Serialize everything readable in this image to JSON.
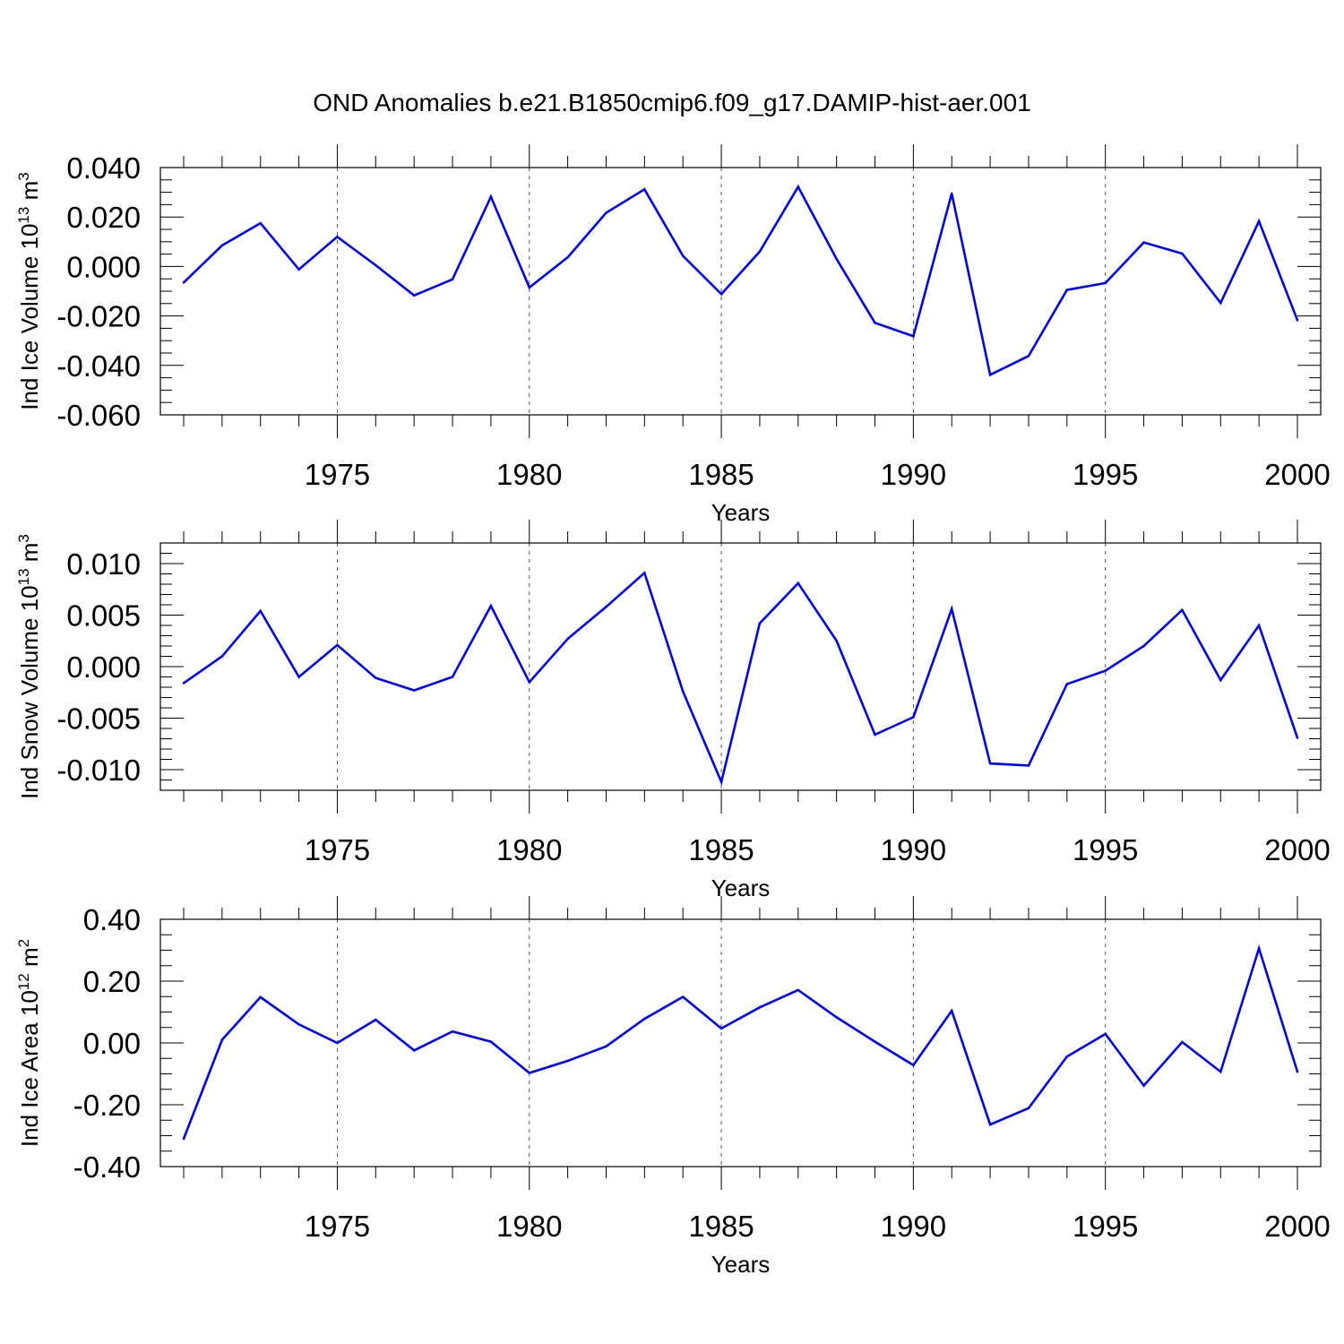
{
  "page_title": "OND Anomalies b.e21.B1850cmip6.f09_g17.DAMIP-hist-aer.001",
  "chart_data": [
    {
      "type": "line",
      "xlabel": "Years",
      "ylabel": {
        "prefix": "Ind Ice Volume 10",
        "sup1": "13",
        "mid": " m",
        "sup2": "3"
      },
      "xlim": [
        1971,
        2000
      ],
      "ylim": [
        -0.06,
        0.04
      ],
      "x_major_ticks": [
        1975,
        1980,
        1985,
        1990,
        1995,
        2000
      ],
      "x_tick_labels": [
        "1975",
        "1980",
        "1985",
        "1990",
        "1995",
        "2000"
      ],
      "y_major_ticks": [
        -0.06,
        -0.04,
        -0.02,
        0.0,
        0.02,
        0.04
      ],
      "y_tick_labels": [
        "-0.060",
        "-0.040",
        "-0.020",
        "0.000",
        "0.020",
        "0.040"
      ],
      "y_minor_step": 0.005,
      "line_color": "#0000ff",
      "gridlines": "dashed vertical at major year ticks",
      "series": [
        {
          "x": [
            1971,
            1972,
            1973,
            1974,
            1975,
            1976,
            1977,
            1978,
            1979,
            1980,
            1981,
            1982,
            1983,
            1984,
            1985,
            1986,
            1987,
            1988,
            1989,
            1990,
            1991,
            1992,
            1993,
            1994,
            1995,
            1996,
            1997,
            1998,
            1999,
            2000
          ],
          "values": [
            -0.0065,
            0.0085,
            0.0175,
            -0.0012,
            0.012,
            0.0005,
            -0.0117,
            -0.0052,
            0.0282,
            -0.0085,
            0.0037,
            0.0217,
            0.0312,
            0.0043,
            -0.0112,
            0.006,
            0.0322,
            0.003,
            -0.0228,
            -0.0282,
            0.0295,
            -0.0438,
            -0.0362,
            -0.0095,
            -0.0067,
            0.0097,
            0.0052,
            -0.0147,
            0.0183,
            -0.0217
          ]
        }
      ]
    },
    {
      "type": "line",
      "xlabel": "Years",
      "ylabel": {
        "prefix": "Ind Snow Volume 10",
        "sup1": "13",
        "mid": " m",
        "sup2": "3"
      },
      "xlim": [
        1971,
        2000
      ],
      "ylim": [
        -0.012,
        0.012
      ],
      "x_major_ticks": [
        1975,
        1980,
        1985,
        1990,
        1995,
        2000
      ],
      "x_tick_labels": [
        "1975",
        "1980",
        "1985",
        "1990",
        "1995",
        "2000"
      ],
      "y_major_ticks": [
        -0.01,
        -0.005,
        0.0,
        0.005,
        0.01
      ],
      "y_tick_labels": [
        "-0.010",
        "-0.005",
        "0.000",
        "0.005",
        "0.010"
      ],
      "y_minor_step": 0.001,
      "line_color": "#0000ff",
      "gridlines": "dashed vertical at major year ticks",
      "series": [
        {
          "x": [
            1971,
            1972,
            1973,
            1974,
            1975,
            1976,
            1977,
            1978,
            1979,
            1980,
            1981,
            1982,
            1983,
            1984,
            1985,
            1986,
            1987,
            1988,
            1989,
            1990,
            1991,
            1992,
            1993,
            1994,
            1995,
            1996,
            1997,
            1998,
            1999,
            2000
          ],
          "values": [
            -0.0016,
            0.001,
            0.0054,
            -0.001,
            0.0021,
            -0.0011,
            -0.0023,
            -0.001,
            0.0059,
            -0.0015,
            0.0027,
            0.0058,
            0.0091,
            -0.0024,
            -0.0112,
            0.0042,
            0.0081,
            0.0025,
            -0.0066,
            -0.0049,
            0.0056,
            -0.0094,
            -0.0096,
            -0.0017,
            -0.0004,
            0.002,
            0.0055,
            -0.0013,
            0.004,
            -0.0069
          ]
        }
      ]
    },
    {
      "type": "line",
      "xlabel": "Years",
      "ylabel": {
        "prefix": "Ind Ice Area 10",
        "sup1": "12",
        "mid": " m",
        "sup2": "2"
      },
      "xlim": [
        1971,
        2000
      ],
      "ylim": [
        -0.4,
        0.4
      ],
      "x_major_ticks": [
        1975,
        1980,
        1985,
        1990,
        1995,
        2000
      ],
      "x_tick_labels": [
        "1975",
        "1980",
        "1985",
        "1990",
        "1995",
        "2000"
      ],
      "y_major_ticks": [
        -0.4,
        -0.2,
        0.0,
        0.2,
        0.4
      ],
      "y_tick_labels": [
        "-0.40",
        "-0.20",
        "0.00",
        "0.20",
        "0.40"
      ],
      "y_minor_step": 0.05,
      "line_color": "#0000ff",
      "gridlines": "dashed vertical at major year ticks",
      "series": [
        {
          "x": [
            1971,
            1972,
            1973,
            1974,
            1975,
            1976,
            1977,
            1978,
            1979,
            1980,
            1981,
            1982,
            1983,
            1984,
            1985,
            1986,
            1987,
            1988,
            1989,
            1990,
            1991,
            1992,
            1993,
            1994,
            1995,
            1996,
            1997,
            1998,
            1999,
            2000
          ],
          "values": [
            -0.31,
            0.01,
            0.148,
            0.06,
            0.0,
            0.075,
            -0.024,
            0.037,
            0.004,
            -0.097,
            -0.058,
            -0.011,
            0.078,
            0.149,
            0.047,
            0.115,
            0.171,
            0.083,
            0.004,
            -0.072,
            0.104,
            -0.264,
            -0.211,
            -0.044,
            0.029,
            -0.138,
            0.003,
            -0.093,
            0.306,
            -0.093
          ]
        }
      ]
    }
  ]
}
